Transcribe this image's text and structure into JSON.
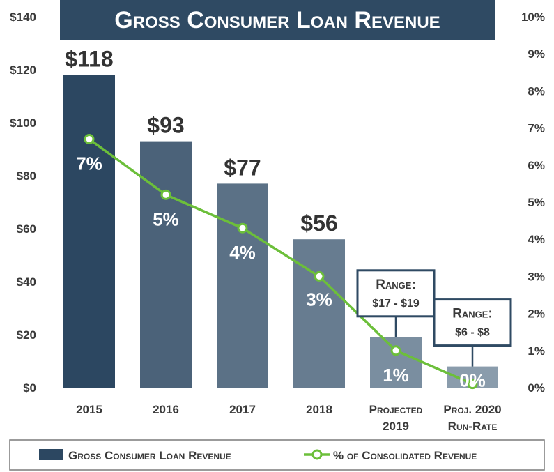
{
  "chart_data": {
    "type": "bar",
    "title": "Gross Consumer Loan Revenue",
    "categories": [
      [
        "2015"
      ],
      [
        "2016"
      ],
      [
        "2017"
      ],
      [
        "2018"
      ],
      [
        "Projected",
        "2019"
      ],
      [
        "Proj. 2020",
        "Run-Rate"
      ]
    ],
    "series": [
      {
        "name": "Gross Consumer Loan Revenue",
        "kind": "bar",
        "axis": "left",
        "values": [
          118,
          93,
          77,
          56,
          19,
          8
        ],
        "labels": [
          "$118",
          "$93",
          "$77",
          "$56",
          "",
          ""
        ],
        "colors": [
          "#2c4761",
          "#4b6279",
          "#5b7186",
          "#677c90",
          "#7a8ea0",
          "#8a9cac"
        ]
      },
      {
        "name": "% of Consolidated Revenue",
        "kind": "line",
        "axis": "right",
        "color": "#6cbf3a",
        "values": [
          6.7,
          5.2,
          4.3,
          3.0,
          1.0,
          0.1
        ],
        "labels": [
          "7%",
          "5%",
          "4%",
          "3%",
          "1%",
          "0%"
        ]
      }
    ],
    "callouts": [
      {
        "category": 4,
        "lines": [
          "Range:",
          "$17 - $19"
        ]
      },
      {
        "category": 5,
        "lines": [
          "Range:",
          "$6 - $8"
        ]
      }
    ],
    "left_axis": {
      "ylim": [
        0,
        140
      ],
      "ticks": [
        0,
        20,
        40,
        60,
        80,
        100,
        120,
        140
      ],
      "tick_labels": [
        "$0",
        "$20",
        "$40",
        "$60",
        "$80",
        "$100",
        "$120",
        "$140"
      ]
    },
    "right_axis": {
      "ylim": [
        0,
        10
      ],
      "ticks": [
        0,
        1,
        2,
        3,
        4,
        5,
        6,
        7,
        8,
        9,
        10
      ],
      "tick_labels": [
        "0%",
        "1%",
        "2%",
        "3%",
        "4%",
        "5%",
        "6%",
        "7%",
        "8%",
        "9%",
        "10%"
      ]
    },
    "grid": false,
    "legend": {
      "placement": "bottom",
      "items": [
        "Gross Consumer Loan Revenue",
        "% of Consolidated Revenue"
      ]
    }
  },
  "colors": {
    "title_bg": "#2f4a63",
    "title_text": "#ffffff",
    "axis_text": "#3a3a3a",
    "value_label": "#333333",
    "inside_label": "#ffffff",
    "line": "#6cbf3a",
    "callout_border": "#2f4a63",
    "callout_bg": "#ffffff",
    "legend_border": "#7a7a7a"
  }
}
